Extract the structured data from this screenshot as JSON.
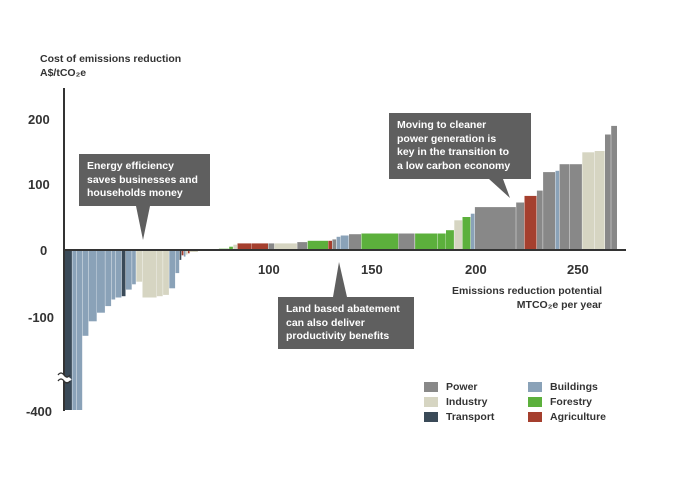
{
  "chart_data": {
    "type": "bar",
    "subtype": "marginal-abatement-cost-curve",
    "title": "",
    "ylabel_line1": "Cost of emissions reduction",
    "ylabel_line2": "A$/tCO₂e",
    "xlabel_line1": "Emissions reduction potential",
    "xlabel_line2": "MTCO₂e per year",
    "ylim": [
      -400,
      250
    ],
    "y_break": "axis break between -150 and -400",
    "xlim": [
      0,
      270
    ],
    "y_ticks": [
      "200",
      "100",
      "0",
      "-100",
      "-400"
    ],
    "x_ticks": [
      "100",
      "150",
      "200",
      "250"
    ],
    "bars": [
      {
        "x0": 0,
        "x1": 4,
        "value": -400,
        "category": "Transport"
      },
      {
        "x0": 4,
        "x1": 6,
        "value": -185,
        "category": "Buildings"
      },
      {
        "x0": 6,
        "x1": 9,
        "value": -155,
        "category": "Buildings"
      },
      {
        "x0": 9,
        "x1": 12,
        "value": -130,
        "category": "Buildings"
      },
      {
        "x0": 12,
        "x1": 16,
        "value": -108,
        "category": "Buildings"
      },
      {
        "x0": 16,
        "x1": 20,
        "value": -95,
        "category": "Buildings"
      },
      {
        "x0": 20,
        "x1": 23,
        "value": -85,
        "category": "Buildings"
      },
      {
        "x0": 23,
        "x1": 25,
        "value": -75,
        "category": "Buildings"
      },
      {
        "x0": 25,
        "x1": 28,
        "value": -72,
        "category": "Buildings"
      },
      {
        "x0": 28,
        "x1": 30,
        "value": -70,
        "category": "Transport"
      },
      {
        "x0": 30,
        "x1": 33,
        "value": -60,
        "category": "Buildings"
      },
      {
        "x0": 33,
        "x1": 35,
        "value": -52,
        "category": "Buildings"
      },
      {
        "x0": 35,
        "x1": 38,
        "value": -48,
        "category": "Industry"
      },
      {
        "x0": 38,
        "x1": 45,
        "value": -72,
        "category": "Industry"
      },
      {
        "x0": 45,
        "x1": 48,
        "value": -70,
        "category": "Industry"
      },
      {
        "x0": 48,
        "x1": 51,
        "value": -68,
        "category": "Industry"
      },
      {
        "x0": 51,
        "x1": 54,
        "value": -58,
        "category": "Buildings"
      },
      {
        "x0": 54,
        "x1": 56,
        "value": -35,
        "category": "Buildings"
      },
      {
        "x0": 56,
        "x1": 57,
        "value": -15,
        "category": "Transport"
      },
      {
        "x0": 57,
        "x1": 58,
        "value": -8,
        "category": "Agriculture"
      },
      {
        "x0": 58,
        "x1": 59,
        "value": -10,
        "category": "Buildings"
      },
      {
        "x0": 59,
        "x1": 60,
        "value": -7,
        "category": "Industry"
      },
      {
        "x0": 60,
        "x1": 61,
        "value": -5,
        "category": "Agriculture"
      },
      {
        "x0": 61,
        "x1": 65,
        "value": -3,
        "category": "Industry"
      },
      {
        "x0": 65,
        "x1": 75,
        "value": -1,
        "category": "Buildings"
      },
      {
        "x0": 75,
        "x1": 80,
        "value": 2,
        "category": "Forestry"
      },
      {
        "x0": 80,
        "x1": 82,
        "value": 5,
        "category": "Forestry"
      },
      {
        "x0": 82,
        "x1": 84,
        "value": 8,
        "category": "Industry"
      },
      {
        "x0": 84,
        "x1": 91,
        "value": 10,
        "category": "Agriculture"
      },
      {
        "x0": 91,
        "x1": 99,
        "value": 10,
        "category": "Agriculture"
      },
      {
        "x0": 99,
        "x1": 102,
        "value": 10,
        "category": "Power"
      },
      {
        "x0": 102,
        "x1": 113,
        "value": 10,
        "category": "Industry"
      },
      {
        "x0": 113,
        "x1": 118,
        "value": 12,
        "category": "Power"
      },
      {
        "x0": 118,
        "x1": 128,
        "value": 14,
        "category": "Forestry"
      },
      {
        "x0": 128,
        "x1": 130,
        "value": 14,
        "category": "Agriculture"
      },
      {
        "x0": 130,
        "x1": 132,
        "value": 16,
        "category": "Power"
      },
      {
        "x0": 132,
        "x1": 134,
        "value": 20,
        "category": "Buildings"
      },
      {
        "x0": 134,
        "x1": 138,
        "value": 22,
        "category": "Buildings"
      },
      {
        "x0": 138,
        "x1": 144,
        "value": 24,
        "category": "Power"
      },
      {
        "x0": 144,
        "x1": 162,
        "value": 25,
        "category": "Forestry"
      },
      {
        "x0": 162,
        "x1": 170,
        "value": 25,
        "category": "Power"
      },
      {
        "x0": 170,
        "x1": 181,
        "value": 25,
        "category": "Forestry"
      },
      {
        "x0": 181,
        "x1": 185,
        "value": 25,
        "category": "Forestry"
      },
      {
        "x0": 185,
        "x1": 189,
        "value": 30,
        "category": "Forestry"
      },
      {
        "x0": 189,
        "x1": 193,
        "value": 45,
        "category": "Industry"
      },
      {
        "x0": 193,
        "x1": 197,
        "value": 50,
        "category": "Forestry"
      },
      {
        "x0": 197,
        "x1": 199,
        "value": 55,
        "category": "Buildings"
      },
      {
        "x0": 199,
        "x1": 219,
        "value": 65,
        "category": "Power"
      },
      {
        "x0": 219,
        "x1": 223,
        "value": 72,
        "category": "Power"
      },
      {
        "x0": 223,
        "x1": 229,
        "value": 82,
        "category": "Agriculture"
      },
      {
        "x0": 229,
        "x1": 232,
        "value": 90,
        "category": "Power"
      },
      {
        "x0": 232,
        "x1": 238,
        "value": 118,
        "category": "Power"
      },
      {
        "x0": 238,
        "x1": 240,
        "value": 120,
        "category": "Buildings"
      },
      {
        "x0": 240,
        "x1": 245,
        "value": 130,
        "category": "Power"
      },
      {
        "x0": 245,
        "x1": 251,
        "value": 130,
        "category": "Power"
      },
      {
        "x0": 251,
        "x1": 257,
        "value": 148,
        "category": "Industry"
      },
      {
        "x0": 257,
        "x1": 262,
        "value": 150,
        "category": "Industry"
      },
      {
        "x0": 262,
        "x1": 265,
        "value": 175,
        "category": "Power"
      },
      {
        "x0": 265,
        "x1": 268,
        "value": 188,
        "category": "Power"
      }
    ]
  },
  "colors": {
    "Power": "#888888",
    "Industry": "#d6d5c2",
    "Transport": "#3a4a58",
    "Buildings": "#8aa2b8",
    "Forestry": "#5cb03c",
    "Agriculture": "#a53f2e",
    "callout": "#5f5f5f",
    "axis": "#333333"
  },
  "legend": [
    {
      "label": "Power",
      "key": "Power"
    },
    {
      "label": "Industry",
      "key": "Industry"
    },
    {
      "label": "Transport",
      "key": "Transport"
    },
    {
      "label": "Buildings",
      "key": "Buildings"
    },
    {
      "label": "Forestry",
      "key": "Forestry"
    },
    {
      "label": "Agriculture",
      "key": "Agriculture"
    }
  ],
  "callouts": {
    "energy": {
      "line1": "Energy efficiency",
      "line2": "saves businesses and",
      "line3": "households money"
    },
    "land": {
      "line1": "Land based abatement",
      "line2": "can also deliver",
      "line3": "productivity benefits"
    },
    "power": {
      "line1": "Moving to cleaner",
      "line2": "power generation is",
      "line3": "key in the transition to",
      "line4": "a low carbon economy"
    }
  }
}
